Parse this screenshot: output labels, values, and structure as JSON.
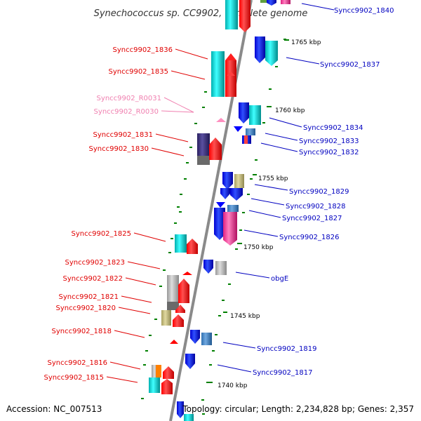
{
  "title": "Synechococcus sp. CC9902, complete genome",
  "footer": {
    "accession": "Accession: NC_007513",
    "topology": "Topology: circular; Length: 2,234,828 bp; Genes: 2,357"
  },
  "kbp_labels": [
    "1765 kbp",
    "1760 kbp",
    "1755 kbp",
    "1750 kbp",
    "1745 kbp",
    "1740 kbp"
  ],
  "left_labels": [
    "Syncc9902_1836",
    "Syncc9902_1835",
    "Syncc9902_R0031",
    "Syncc9902_R0030",
    "Syncc9902_1831",
    "Syncc9902_1830",
    "Syncc9902_1825",
    "Syncc9902_1823",
    "Syncc9902_1822",
    "Syncc9902_1821",
    "Syncc9902_1820",
    "Syncc9902_1818",
    "Syncc9902_1816",
    "Syncc9902_1815"
  ],
  "right_labels": [
    "Syncc9902_1840",
    "Syncc9902_1837",
    "Syncc9902_1834",
    "Syncc9902_1833",
    "Syncc9902_1832",
    "Syncc9902_1829",
    "Syncc9902_1828",
    "Syncc9902_1827",
    "Syncc9902_1826",
    "obgE",
    "Syncc9902_1819",
    "Syncc9902_1817"
  ],
  "colors": {
    "forward_label": "#e00000",
    "reverse_label": "#0000c0",
    "rna_label": "#f080b0",
    "backbone": "#8a8a8a",
    "tick": "#008000",
    "red": "#ff0000",
    "blue": "#0000ff",
    "cyan": "#00cccc",
    "gray": "#bbbbbb",
    "navy": "#3a2f80",
    "khaki": "#c8c080",
    "magenta": "#ff40a0",
    "steel": "#4a8ac8",
    "orange": "#ff8000",
    "pink": "#ff90c0"
  }
}
